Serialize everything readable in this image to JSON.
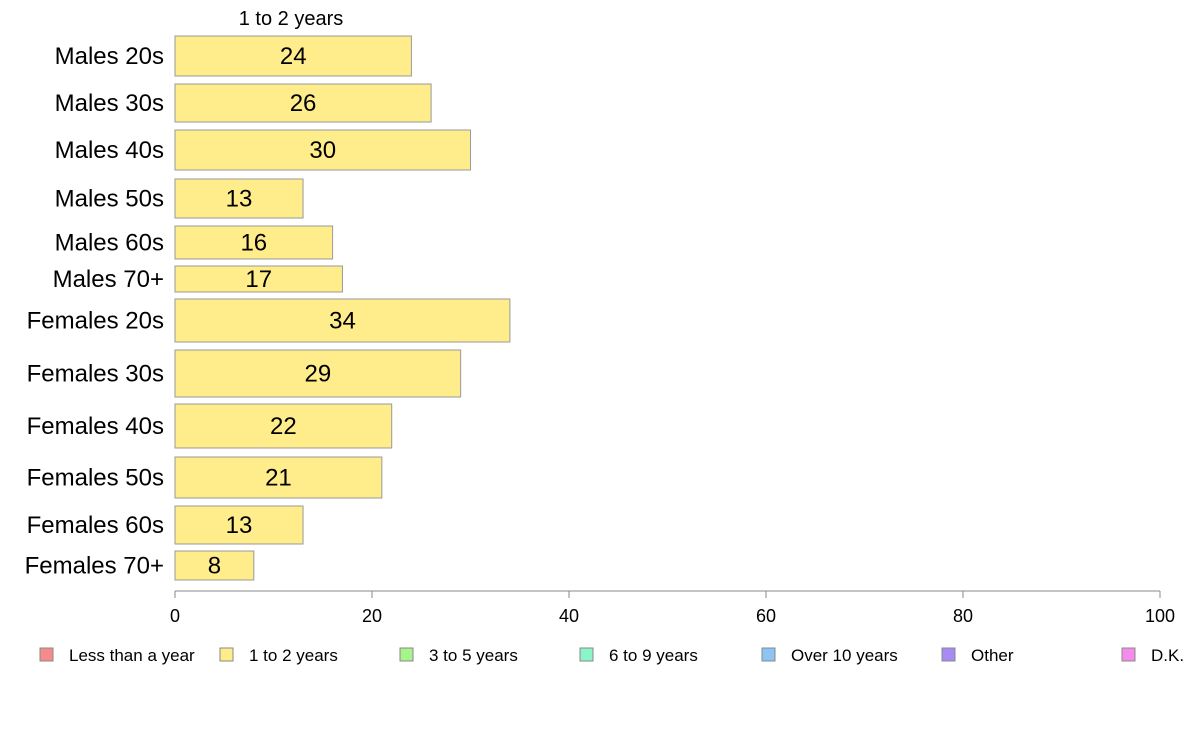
{
  "chart_data": {
    "type": "bar",
    "orientation": "horizontal",
    "title": "",
    "xlabel": "",
    "ylabel": "",
    "xlim": [
      0,
      100
    ],
    "xticks": [
      0,
      20,
      40,
      60,
      80,
      100
    ],
    "grid": false,
    "legend_placement": "bottom",
    "categories": [
      "Males 20s",
      "Males 30s",
      "Males 40s",
      "Males 50s",
      "Males 60s",
      "Males 70+",
      "Females 20s",
      "Females 30s",
      "Females 40s",
      "Females 50s",
      "Females 60s",
      "Females 70+"
    ],
    "series": [
      {
        "name": "1 to 2 years",
        "color": "#ffec8b",
        "values": [
          24,
          26,
          30,
          13,
          16,
          17,
          34,
          29,
          22,
          21,
          13,
          8
        ],
        "data_labels": [
          "24",
          "26",
          "30",
          "13",
          "16",
          "17",
          "34",
          "29",
          "22",
          "21",
          "13",
          "8"
        ]
      }
    ],
    "shown_series_title": "1 to 2 years",
    "legend": [
      {
        "label": "Less than a year",
        "color": "#f58b8b"
      },
      {
        "label": "1 to 2 years",
        "color": "#ffec8b"
      },
      {
        "label": "3 to 5 years",
        "color": "#a6f58b"
      },
      {
        "label": "6 to 9 years",
        "color": "#8bf5c9"
      },
      {
        "label": "Over 10 years",
        "color": "#8bc4f5"
      },
      {
        "label": "Other",
        "color": "#a78bf5"
      },
      {
        "label": "D.K.",
        "color": "#f58bec"
      }
    ]
  }
}
